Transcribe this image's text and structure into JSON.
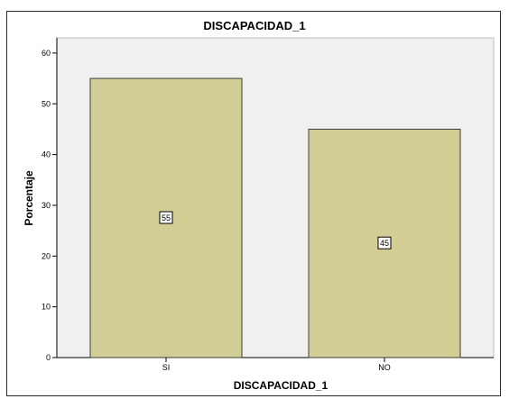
{
  "chart_data": {
    "type": "bar",
    "title": "DISCAPACIDAD_1",
    "xlabel": "DISCAPACIDAD_1",
    "ylabel": "Porcentaje",
    "categories": [
      "SI",
      "NO"
    ],
    "values": [
      55,
      45
    ],
    "data_labels": [
      "55",
      "45"
    ],
    "ylim": [
      0,
      63
    ],
    "yticks": [
      0,
      10,
      20,
      30,
      40,
      50,
      60
    ],
    "grid": false,
    "legend": "none",
    "colors": {
      "bar_fill": "#d3cd96",
      "bar_stroke": "#3b3b3b",
      "plot_background": "#f0f0f0",
      "axis": "#000000"
    }
  }
}
